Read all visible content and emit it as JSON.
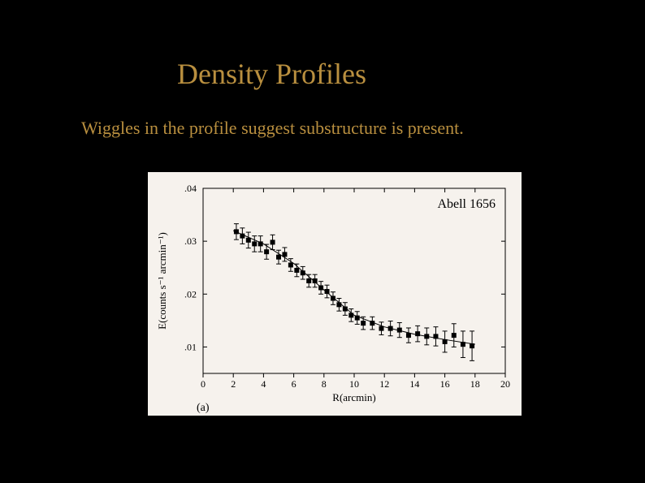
{
  "slide": {
    "background": "#000000",
    "title": "Density Profiles",
    "title_color": "#b98f3f",
    "title_fontsize": 36,
    "subtitle": "Wiggles in the profile suggest substructure is present.",
    "subtitle_color": "#b98f3f",
    "subtitle_fontsize": 22
  },
  "chart": {
    "type": "scatter-errorbar-line",
    "panel_bg": "#f6f2ed",
    "plot_bg": "#f6f2ed",
    "frame_color": "#000000",
    "title": "Abell 1656",
    "title_fontsize": 16,
    "panel_label": "(a)",
    "panel_label_fontsize": 14,
    "xlabel": "R(arcmin)",
    "ylabel": "E(counts s⁻¹ arcmin⁻¹)",
    "label_fontsize": 12,
    "xlim": [
      0,
      20
    ],
    "ylim": [
      0.005,
      0.04
    ],
    "xticks": [
      0,
      2,
      4,
      6,
      8,
      10,
      12,
      14,
      16,
      18,
      20
    ],
    "yticks": [
      0.01,
      0.02,
      0.03,
      0.04
    ],
    "ytick_labels": [
      ".01",
      ".02",
      ".03",
      ".04"
    ],
    "marker_style": "square",
    "marker_size": 3,
    "marker_color": "#000000",
    "errorbar_color": "#000000",
    "errorbar_cap": 3,
    "line_color": "#000000",
    "line_width": 1,
    "data": [
      {
        "x": 2.2,
        "y": 0.0318,
        "err": 0.0015
      },
      {
        "x": 2.6,
        "y": 0.031,
        "err": 0.0015
      },
      {
        "x": 3.0,
        "y": 0.0302,
        "err": 0.0015
      },
      {
        "x": 3.4,
        "y": 0.0295,
        "err": 0.0015
      },
      {
        "x": 3.8,
        "y": 0.0295,
        "err": 0.0015
      },
      {
        "x": 4.2,
        "y": 0.028,
        "err": 0.0014
      },
      {
        "x": 4.6,
        "y": 0.0298,
        "err": 0.0014
      },
      {
        "x": 5.0,
        "y": 0.027,
        "err": 0.0013
      },
      {
        "x": 5.4,
        "y": 0.0275,
        "err": 0.0013
      },
      {
        "x": 5.8,
        "y": 0.0255,
        "err": 0.0012
      },
      {
        "x": 6.2,
        "y": 0.0245,
        "err": 0.0012
      },
      {
        "x": 6.6,
        "y": 0.024,
        "err": 0.0012
      },
      {
        "x": 7.0,
        "y": 0.0225,
        "err": 0.0012
      },
      {
        "x": 7.4,
        "y": 0.0225,
        "err": 0.0012
      },
      {
        "x": 7.8,
        "y": 0.0212,
        "err": 0.0012
      },
      {
        "x": 8.2,
        "y": 0.0205,
        "err": 0.0012
      },
      {
        "x": 8.6,
        "y": 0.0192,
        "err": 0.0012
      },
      {
        "x": 9.0,
        "y": 0.018,
        "err": 0.0012
      },
      {
        "x": 9.4,
        "y": 0.0172,
        "err": 0.0012
      },
      {
        "x": 9.8,
        "y": 0.016,
        "err": 0.0012
      },
      {
        "x": 10.2,
        "y": 0.0155,
        "err": 0.0012
      },
      {
        "x": 10.6,
        "y": 0.0145,
        "err": 0.0012
      },
      {
        "x": 11.2,
        "y": 0.0145,
        "err": 0.0012
      },
      {
        "x": 11.8,
        "y": 0.0135,
        "err": 0.0012
      },
      {
        "x": 12.4,
        "y": 0.0135,
        "err": 0.0014
      },
      {
        "x": 13.0,
        "y": 0.0132,
        "err": 0.0014
      },
      {
        "x": 13.6,
        "y": 0.0122,
        "err": 0.0014
      },
      {
        "x": 14.2,
        "y": 0.0125,
        "err": 0.0015
      },
      {
        "x": 14.8,
        "y": 0.012,
        "err": 0.0016
      },
      {
        "x": 15.4,
        "y": 0.012,
        "err": 0.0018
      },
      {
        "x": 16.0,
        "y": 0.011,
        "err": 0.002
      },
      {
        "x": 16.6,
        "y": 0.0122,
        "err": 0.0022
      },
      {
        "x": 17.2,
        "y": 0.0105,
        "err": 0.0025
      },
      {
        "x": 17.8,
        "y": 0.0102,
        "err": 0.0028
      }
    ],
    "fit_curve": [
      {
        "x": 2.0,
        "y": 0.032
      },
      {
        "x": 4.0,
        "y": 0.0295
      },
      {
        "x": 6.0,
        "y": 0.0258
      },
      {
        "x": 8.0,
        "y": 0.0208
      },
      {
        "x": 10.0,
        "y": 0.016
      },
      {
        "x": 12.0,
        "y": 0.0138
      },
      {
        "x": 14.0,
        "y": 0.0124
      },
      {
        "x": 16.0,
        "y": 0.0114
      },
      {
        "x": 18.0,
        "y": 0.0105
      }
    ]
  }
}
